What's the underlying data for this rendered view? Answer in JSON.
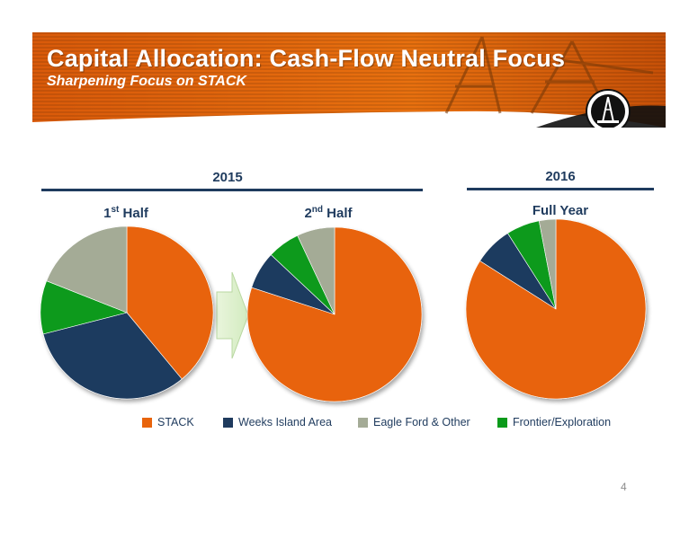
{
  "header": {
    "title": "Capital Allocation: Cash-Flow Neutral Focus",
    "subtitle": "Sharpening Focus on STACK"
  },
  "years": {
    "y2015": "2015",
    "y2016": "2016"
  },
  "periods": {
    "h1_main": "1",
    "h1_sup": "st",
    "h1_rest": " Half",
    "h2_main": "2",
    "h2_sup": "nd",
    "h2_rest": " Half",
    "full": "Full Year"
  },
  "colors": {
    "STACK": "#e8640c",
    "Weeks Island Area": "#1f3b5e",
    "Eagle Ford & Other": "#a4ab96",
    "Frontier/Exploration": "#0a9a1a",
    "banner": "#e0660f",
    "rule": "#1f3b5e"
  },
  "chart_data": [
    {
      "type": "pie",
      "title": "1st Half",
      "slices": [
        {
          "name": "STACK",
          "value": 39
        },
        {
          "name": "Weeks Island Area",
          "value": 32
        },
        {
          "name": "Frontier/Exploration",
          "value": 10
        },
        {
          "name": "Eagle Ford & Other",
          "value": 19
        }
      ]
    },
    {
      "type": "pie",
      "title": "2nd Half",
      "slices": [
        {
          "name": "STACK",
          "value": 80
        },
        {
          "name": "Weeks Island Area",
          "value": 7
        },
        {
          "name": "Frontier/Exploration",
          "value": 6
        },
        {
          "name": "Eagle Ford & Other",
          "value": 7
        }
      ]
    },
    {
      "type": "pie",
      "title": "Full Year",
      "slices": [
        {
          "name": "STACK",
          "value": 84
        },
        {
          "name": "Weeks Island Area",
          "value": 7
        },
        {
          "name": "Frontier/Exploration",
          "value": 6
        },
        {
          "name": "Eagle Ford & Other",
          "value": 3
        }
      ]
    }
  ],
  "legend": [
    {
      "label": "STACK"
    },
    {
      "label": "Weeks Island Area"
    },
    {
      "label": "Eagle Ford & Other"
    },
    {
      "label": "Frontier/Exploration"
    }
  ],
  "page_number": "4"
}
